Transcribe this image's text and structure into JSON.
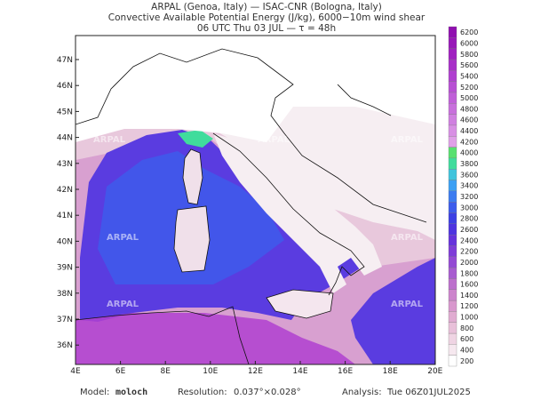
{
  "header": {
    "line1": "ARPAL (Genoa, Italy)  —  ISAC-CNR (Bologna, Italy)",
    "line2": "Convective Available Potential Energy (J/kg), 6000−10m wind shear",
    "line3": "06 UTC Thu 03 JUL  —  τ = 48h"
  },
  "map": {
    "lat_labels": [
      "47N",
      "46N",
      "45N",
      "44N",
      "43N",
      "42N",
      "41N",
      "40N",
      "39N",
      "38N",
      "37N",
      "36N"
    ],
    "lon_labels": [
      "4E",
      "6E",
      "8E",
      "10E",
      "12E",
      "14E",
      "16E",
      "18E",
      "20E"
    ],
    "watermark": "ARPAL"
  },
  "colorbar": {
    "levels": [
      "200",
      "400",
      "600",
      "800",
      "1000",
      "1200",
      "1400",
      "1600",
      "1800",
      "2000",
      "2200",
      "2400",
      "2600",
      "2800",
      "3000",
      "3200",
      "3400",
      "3600",
      "3800",
      "4000",
      "4200",
      "4400",
      "4600",
      "4800",
      "5000",
      "5200",
      "5400",
      "5600",
      "5800",
      "6000",
      "6200"
    ],
    "colors": [
      "#ffffff",
      "#f6e8ef",
      "#efd4e3",
      "#e8c0d9",
      "#e0acd1",
      "#d898cd",
      "#cc84cc",
      "#bc70cc",
      "#a85cd0",
      "#944ad4",
      "#7e3cd8",
      "#6632dc",
      "#4e34e0",
      "#3c40e4",
      "#3c5cec",
      "#3c7cf0",
      "#3ca0f4",
      "#40c4dc",
      "#40dc9c",
      "#58e070",
      "#e0a0e8",
      "#d890e4",
      "#d080e0",
      "#c870dc",
      "#c060d8",
      "#b850d4",
      "#b040d0",
      "#a830c8",
      "#a020c0",
      "#9818b8",
      "#9010b0"
    ]
  },
  "footer": {
    "model_label": "Model:",
    "model": "moloch",
    "resolution_label": "Resolution:",
    "resolution": "0.037°×0.028°",
    "analysis_label": "Analysis:",
    "analysis": "Tue 06Z01JUL2025"
  }
}
